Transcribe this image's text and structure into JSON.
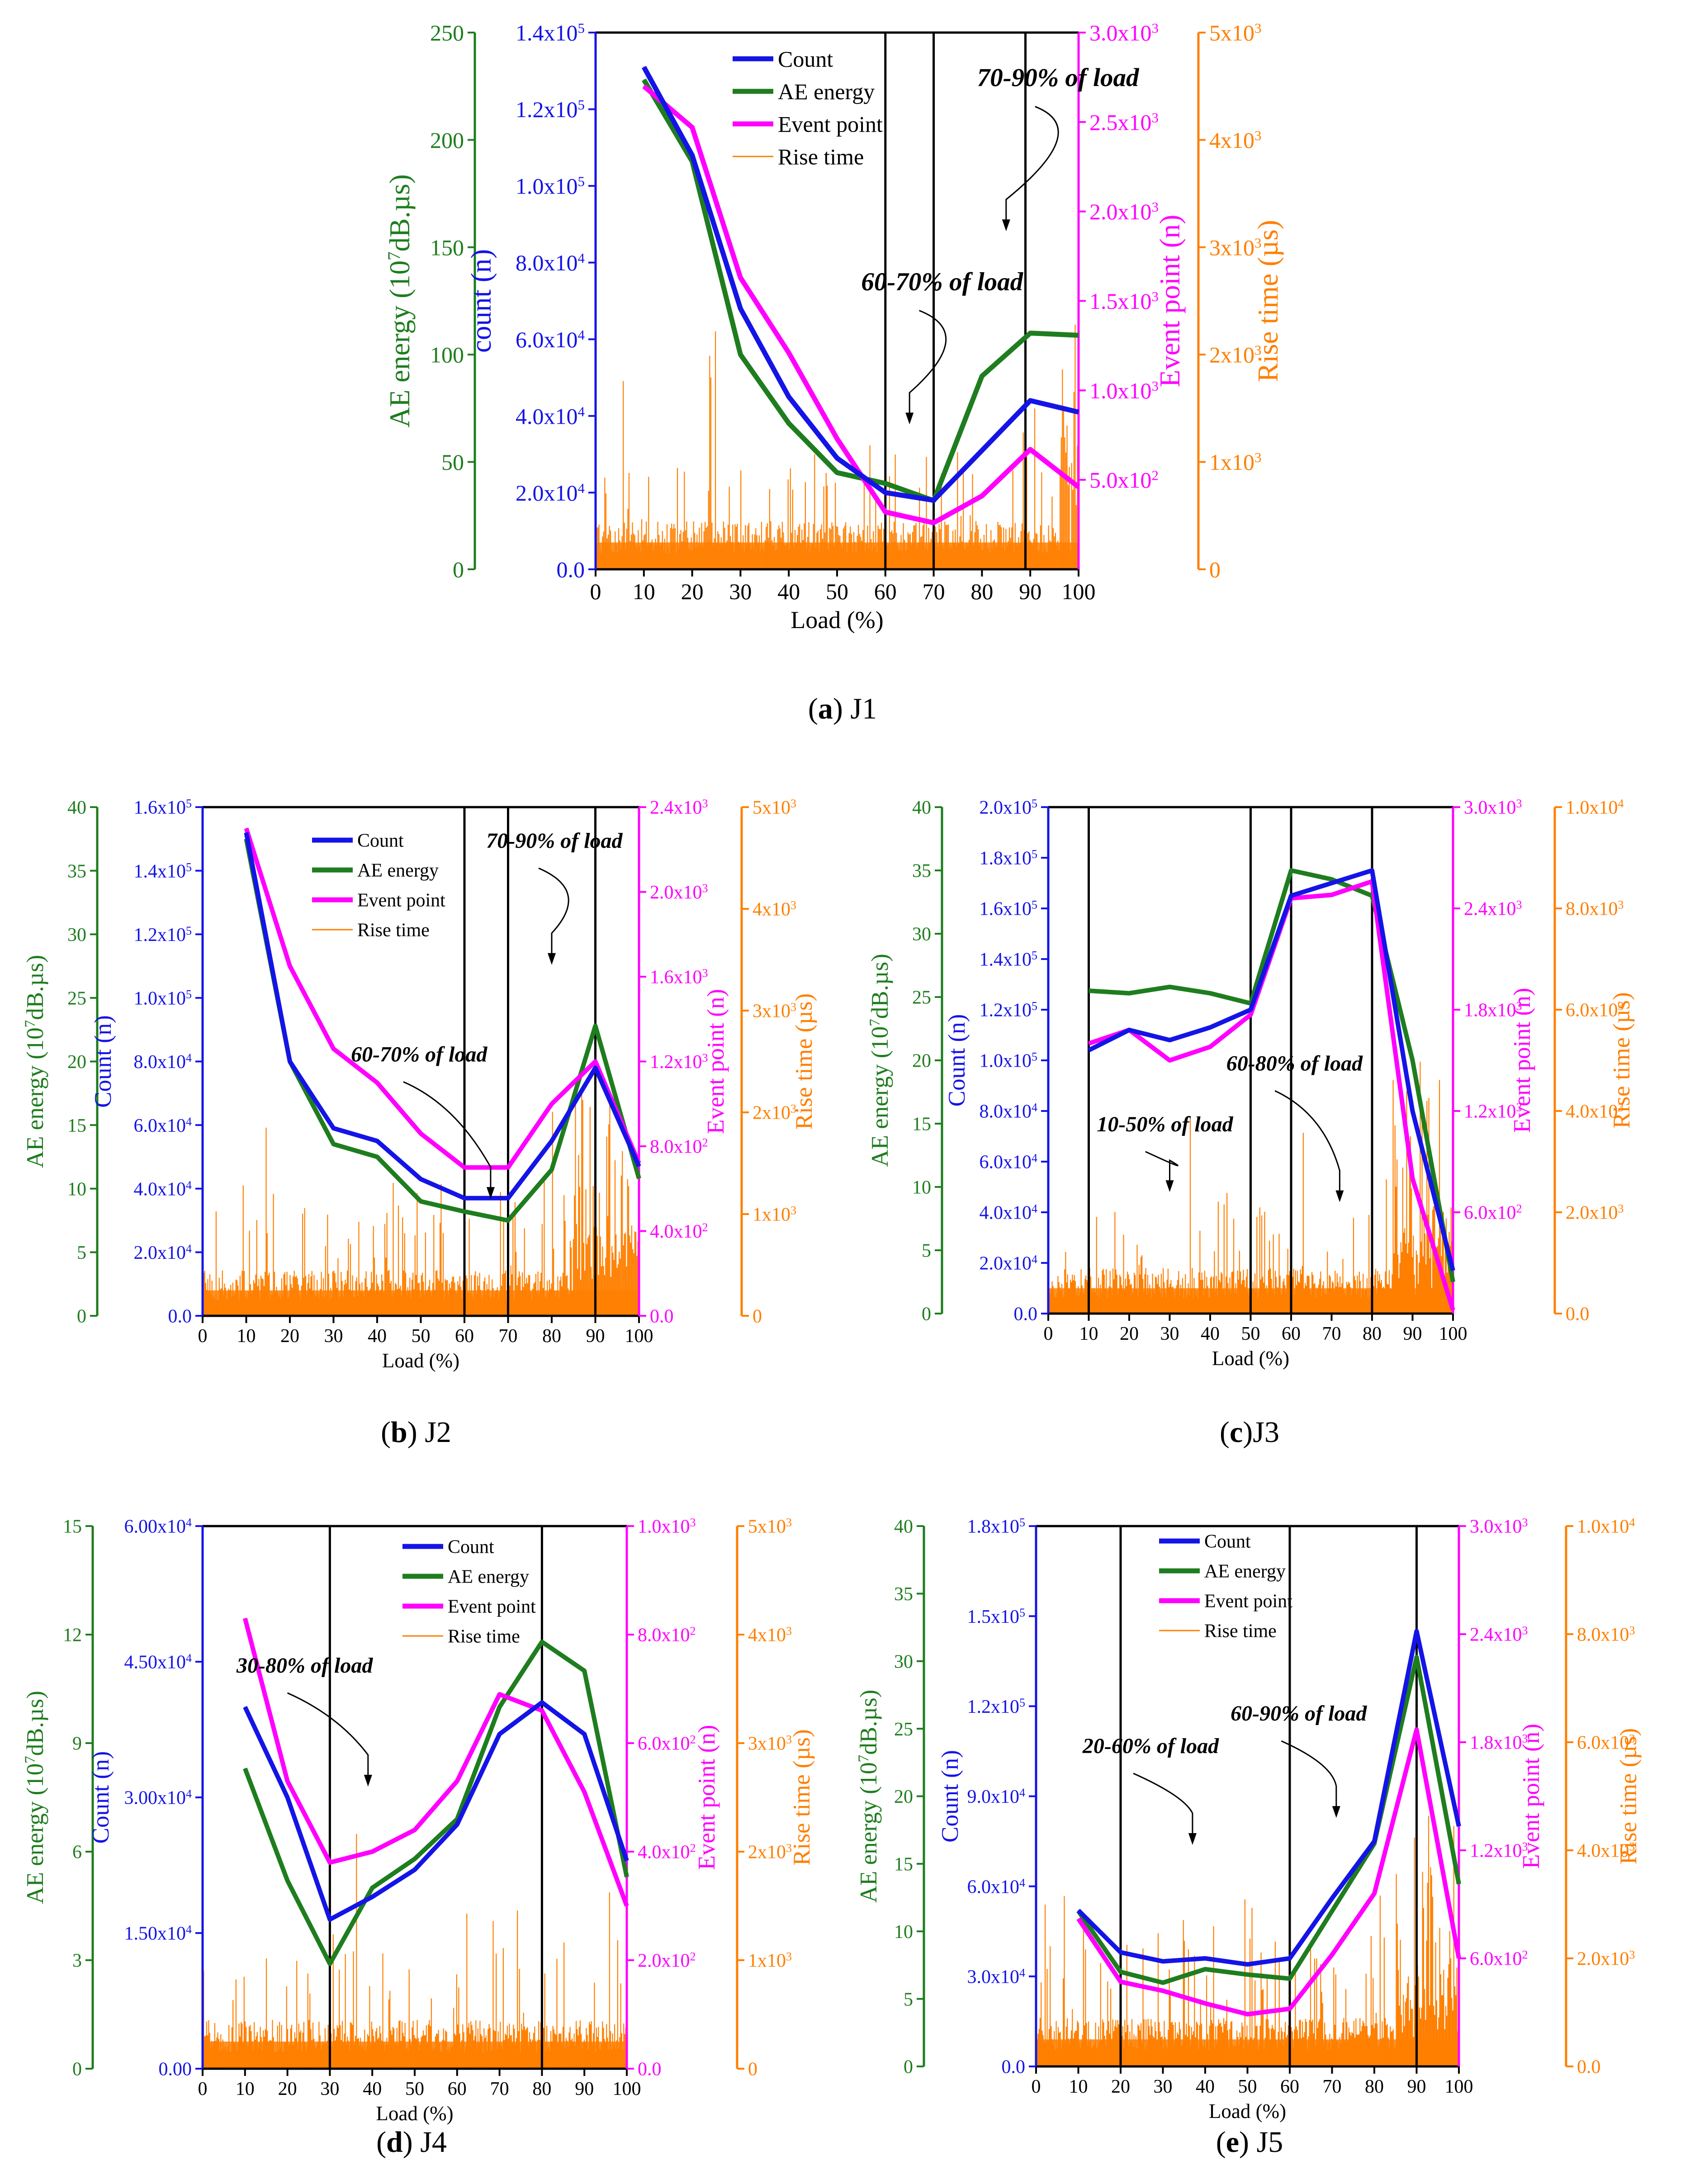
{
  "colors": {
    "count": "#1414e6",
    "energy": "#1e7d1e",
    "event": "#ff00ff",
    "rise": "#ff7f00",
    "divider": "#000000"
  },
  "common": {
    "x_label": "Load (%)",
    "x_ticks": [
      "0",
      "10",
      "20",
      "30",
      "40",
      "50",
      "60",
      "70",
      "80",
      "90",
      "100"
    ],
    "energy_label": "AE energy (10<sup>7</sup>dB.µs)",
    "event_label": "Event point (n)",
    "rise_label": "Rise time (µs)",
    "legend": [
      "Count",
      "AE energy",
      "Event point",
      "Rise time"
    ]
  },
  "chart_data": [
    {
      "id": "a",
      "type": "line",
      "caption_letter": "a",
      "caption_name": "J1",
      "count_label": "count (n)",
      "x": [
        10,
        20,
        30,
        40,
        50,
        60,
        70,
        80,
        90,
        100
      ],
      "axes": {
        "energy": {
          "min": 0,
          "max": 250,
          "ticks": [
            "0",
            "50",
            "100",
            "150",
            "200",
            "250"
          ]
        },
        "count": {
          "min": 0,
          "max": 140000,
          "ticks": [
            "0.0",
            "2.0x10<sup>4</sup>",
            "4.0x10<sup>4</sup>",
            "6.0x10<sup>4</sup>",
            "8.0x10<sup>4</sup>",
            "1.0x10<sup>5</sup>",
            "1.2x10<sup>5</sup>",
            "1.4x10<sup>5</sup>"
          ]
        },
        "event": {
          "min": 0,
          "max": 3000,
          "ticks": [
            "5.0x10<sup>2</sup>",
            "1.0x10<sup>3</sup>",
            "1.5x10<sup>3</sup>",
            "2.0x10<sup>3</sup>",
            "2.5x10<sup>3</sup>",
            "3.0x10<sup>3</sup>"
          ],
          "tick_values": [
            500,
            1000,
            1500,
            2000,
            2500,
            3000
          ]
        },
        "rise": {
          "min": 0,
          "max": 5000,
          "ticks": [
            "0",
            "1x10<sup>3</sup>",
            "2x10<sup>3</sup>",
            "3x10<sup>3</sup>",
            "4x10<sup>3</sup>",
            "5x10<sup>3</sup>"
          ]
        }
      },
      "series": [
        {
          "name": "Count",
          "axis": "count",
          "values": [
            131000,
            108000,
            68000,
            45000,
            29000,
            20000,
            18000,
            31000,
            44000,
            41000
          ]
        },
        {
          "name": "AE energy",
          "axis": "energy",
          "values": [
            228,
            190,
            100,
            68,
            45,
            40,
            32,
            90,
            110,
            109
          ]
        },
        {
          "name": "Event point",
          "axis": "event",
          "values": [
            2700,
            2470,
            1630,
            1210,
            730,
            320,
            260,
            410,
            670,
            460
          ]
        }
      ],
      "dividers": [
        60,
        70,
        89
      ],
      "annotations": [
        {
          "text": "60-70% of load",
          "x": 55,
          "y": 0.52,
          "ax": 65,
          "ay": 0.27
        },
        {
          "text": "70-90% of load",
          "x": 79,
          "y": 0.9,
          "ax": 85,
          "ay": 0.63
        }
      ]
    },
    {
      "id": "b",
      "type": "line",
      "caption_letter": "b",
      "caption_name": "J2",
      "count_label": "Count (n)",
      "x": [
        10,
        20,
        30,
        40,
        50,
        60,
        70,
        80,
        90,
        100
      ],
      "axes": {
        "energy": {
          "min": 0,
          "max": 40,
          "ticks": [
            "0",
            "5",
            "10",
            "15",
            "20",
            "25",
            "30",
            "35",
            "40"
          ]
        },
        "count": {
          "min": 0,
          "max": 160000,
          "ticks": [
            "0.0",
            "2.0x10<sup>4</sup>",
            "4.0x10<sup>4</sup>",
            "6.0x10<sup>4</sup>",
            "8.0x10<sup>4</sup>",
            "1.0x10<sup>5</sup>",
            "1.2x10<sup>5</sup>",
            "1.4x10<sup>5</sup>",
            "1.6x10<sup>5</sup>"
          ]
        },
        "event": {
          "min": 0,
          "max": 2400,
          "ticks": [
            "0.0",
            "4.0x10<sup>2</sup>",
            "8.0x10<sup>2</sup>",
            "1.2x10<sup>3</sup>",
            "1.6x10<sup>3</sup>",
            "2.0x10<sup>3</sup>",
            "2.4x10<sup>3</sup>"
          ]
        },
        "rise": {
          "min": 0,
          "max": 5000,
          "ticks": [
            "0",
            "1x10<sup>3</sup>",
            "2x10<sup>3</sup>",
            "3x10<sup>3</sup>",
            "4x10<sup>3</sup>",
            "5x10<sup>3</sup>"
          ]
        }
      },
      "series": [
        {
          "name": "Count",
          "axis": "count",
          "values": [
            152000,
            80000,
            59000,
            55000,
            43000,
            37000,
            37000,
            55000,
            78000,
            47000
          ]
        },
        {
          "name": "AE energy",
          "axis": "energy",
          "values": [
            37.5,
            20,
            13.5,
            12.5,
            9,
            8.2,
            7.5,
            11.5,
            22.8,
            10.8
          ]
        },
        {
          "name": "Event point",
          "axis": "event",
          "values": [
            2300,
            1650,
            1260,
            1100,
            860,
            700,
            700,
            1000,
            1200,
            720
          ]
        }
      ],
      "dividers": [
        60,
        70,
        90
      ],
      "annotations": [
        {
          "text": "60-70% of load",
          "x": 34,
          "y": 0.5,
          "ax": 66,
          "ay": 0.23
        },
        {
          "text": "70-90% of load",
          "x": 65,
          "y": 0.92,
          "ax": 80,
          "ay": 0.69
        }
      ]
    },
    {
      "id": "c",
      "type": "line",
      "caption_letter": "c",
      "caption_name": "J3",
      "count_label": "Count (n)",
      "x": [
        10,
        20,
        30,
        40,
        50,
        60,
        70,
        80,
        90,
        100
      ],
      "axes": {
        "energy": {
          "min": 0,
          "max": 40,
          "ticks": [
            "0",
            "5",
            "10",
            "15",
            "20",
            "25",
            "30",
            "35",
            "40"
          ]
        },
        "count": {
          "min": 0,
          "max": 200000,
          "ticks": [
            "0.0",
            "2.0x10<sup>4</sup>",
            "4.0x10<sup>4</sup>",
            "6.0x10<sup>4</sup>",
            "8.0x10<sup>4</sup>",
            "1.0x10<sup>5</sup>",
            "1.2x10<sup>5</sup>",
            "1.4x10<sup>5</sup>",
            "1.6x10<sup>5</sup>",
            "1.8x10<sup>5</sup>",
            "2.0x10<sup>5</sup>"
          ]
        },
        "event": {
          "min": 0,
          "max": 3000,
          "ticks": [
            "6.0x10<sup>2</sup>",
            "1.2x10<sup>3</sup>",
            "1.8x10<sup>3</sup>",
            "2.4x10<sup>3</sup>",
            "3.0x10<sup>3</sup>"
          ],
          "tick_values": [
            600,
            1200,
            1800,
            2400,
            3000
          ]
        },
        "rise": {
          "min": 0,
          "max": 10000,
          "ticks": [
            "0.0",
            "2.0x10<sup>3</sup>",
            "4.0x10<sup>3</sup>",
            "6.0x10<sup>3</sup>",
            "8.0x10<sup>3</sup>",
            "1.0x10<sup>4</sup>"
          ]
        }
      },
      "series": [
        {
          "name": "Count",
          "axis": "count",
          "values": [
            104000,
            112000,
            108000,
            113000,
            120000,
            165000,
            170000,
            175000,
            80000,
            17000
          ]
        },
        {
          "name": "AE energy",
          "axis": "energy",
          "values": [
            25.5,
            25.3,
            25.8,
            25.3,
            24.5,
            35,
            34.3,
            33,
            20,
            2.5
          ]
        },
        {
          "name": "Event point",
          "axis": "event",
          "values": [
            1600,
            1680,
            1500,
            1580,
            1770,
            2460,
            2480,
            2560,
            800,
            20
          ]
        }
      ],
      "dividers": [
        10,
        50,
        60,
        80
      ],
      "annotations": [
        {
          "text": "10-50% of load",
          "x": 12,
          "y": 0.36,
          "ax": 30,
          "ay": 0.24
        },
        {
          "text": "60-80% of load",
          "x": 44,
          "y": 0.48,
          "ax": 72,
          "ay": 0.22
        }
      ]
    },
    {
      "id": "d",
      "type": "line",
      "caption_letter": "d",
      "caption_name": "J4",
      "count_label": "Count (n)",
      "x": [
        10,
        20,
        30,
        40,
        50,
        60,
        70,
        80,
        90,
        100
      ],
      "axes": {
        "energy": {
          "min": 0,
          "max": 15,
          "ticks": [
            "0",
            "3",
            "6",
            "9",
            "12",
            "15"
          ]
        },
        "count": {
          "min": 0,
          "max": 60000,
          "ticks": [
            "0.00",
            "1.50x10<sup>4</sup>",
            "3.00x10<sup>4</sup>",
            "4.50x10<sup>4</sup>",
            "6.00x10<sup>4</sup>"
          ]
        },
        "event": {
          "min": 0,
          "max": 1000,
          "ticks": [
            "0.0",
            "2.0x10<sup>2</sup>",
            "4.0x10<sup>2</sup>",
            "6.0x10<sup>2</sup>",
            "8.0x10<sup>2</sup>",
            "1.0x10<sup>3</sup>"
          ]
        },
        "rise": {
          "min": 0,
          "max": 5000,
          "ticks": [
            "0",
            "1x10<sup>3</sup>",
            "2x10<sup>3</sup>",
            "3x10<sup>3</sup>",
            "4x10<sup>3</sup>",
            "5x10<sup>3</sup>"
          ]
        }
      },
      "series": [
        {
          "name": "Count",
          "axis": "count",
          "values": [
            40000,
            30000,
            16500,
            19000,
            22000,
            27000,
            37000,
            40500,
            37000,
            23000
          ]
        },
        {
          "name": "AE energy",
          "axis": "energy",
          "values": [
            8.3,
            5.2,
            2.9,
            5,
            5.8,
            6.9,
            10,
            11.8,
            11,
            5.3
          ]
        },
        {
          "name": "Event point",
          "axis": "event",
          "values": [
            830,
            530,
            380,
            400,
            440,
            530,
            690,
            660,
            510,
            300
          ]
        }
      ],
      "dividers": [
        30,
        80
      ],
      "annotations": [
        {
          "text": "30-80% of load",
          "x": 8,
          "y": 0.73,
          "ax": 39,
          "ay": 0.52
        }
      ]
    },
    {
      "id": "e",
      "type": "line",
      "caption_letter": "e",
      "caption_name": "J5",
      "count_label": "Count (n)",
      "x": [
        10,
        20,
        30,
        40,
        50,
        60,
        70,
        80,
        90,
        100
      ],
      "axes": {
        "energy": {
          "min": 0,
          "max": 40,
          "ticks": [
            "0",
            "5",
            "10",
            "15",
            "20",
            "25",
            "30",
            "35",
            "40"
          ]
        },
        "count": {
          "min": 0,
          "max": 180000,
          "ticks": [
            "0.0",
            "3.0x10<sup>4</sup>",
            "6.0x10<sup>4</sup>",
            "9.0x10<sup>4</sup>",
            "1.2x10<sup>5</sup>",
            "1.5x10<sup>5</sup>",
            "1.8x10<sup>5</sup>"
          ]
        },
        "event": {
          "min": 0,
          "max": 3000,
          "ticks": [
            "6.0x10<sup>2</sup>",
            "1.2x10<sup>3</sup>",
            "1.8x10<sup>3</sup>",
            "2.4x10<sup>3</sup>",
            "3.0x10<sup>3</sup>"
          ],
          "tick_values": [
            600,
            1200,
            1800,
            2400,
            3000
          ]
        },
        "rise": {
          "min": 0,
          "max": 10000,
          "ticks": [
            "0.0",
            "2.0x10<sup>3</sup>",
            "4.0x10<sup>3</sup>",
            "6.0x10<sup>3</sup>",
            "8.0x10<sup>3</sup>",
            "1.0x10<sup>4</sup>"
          ]
        }
      },
      "series": [
        {
          "name": "Count",
          "axis": "count",
          "values": [
            52000,
            38000,
            35000,
            36000,
            34000,
            36000,
            56000,
            75000,
            145000,
            80000
          ]
        },
        {
          "name": "AE energy",
          "axis": "energy",
          "values": [
            11.5,
            7,
            6.2,
            7.2,
            6.8,
            6.5,
            11.5,
            16.5,
            30.3,
            13.5
          ]
        },
        {
          "name": "Event point",
          "axis": "event",
          "values": [
            820,
            470,
            420,
            350,
            290,
            320,
            620,
            960,
            1870,
            600
          ]
        }
      ],
      "dividers": [
        20,
        60,
        90
      ],
      "annotations": [
        {
          "text": "20-60% of load",
          "x": 11,
          "y": 0.58,
          "ax": 37,
          "ay": 0.41
        },
        {
          "text": "60-90% of load",
          "x": 46,
          "y": 0.64,
          "ax": 71,
          "ay": 0.46
        }
      ]
    }
  ]
}
